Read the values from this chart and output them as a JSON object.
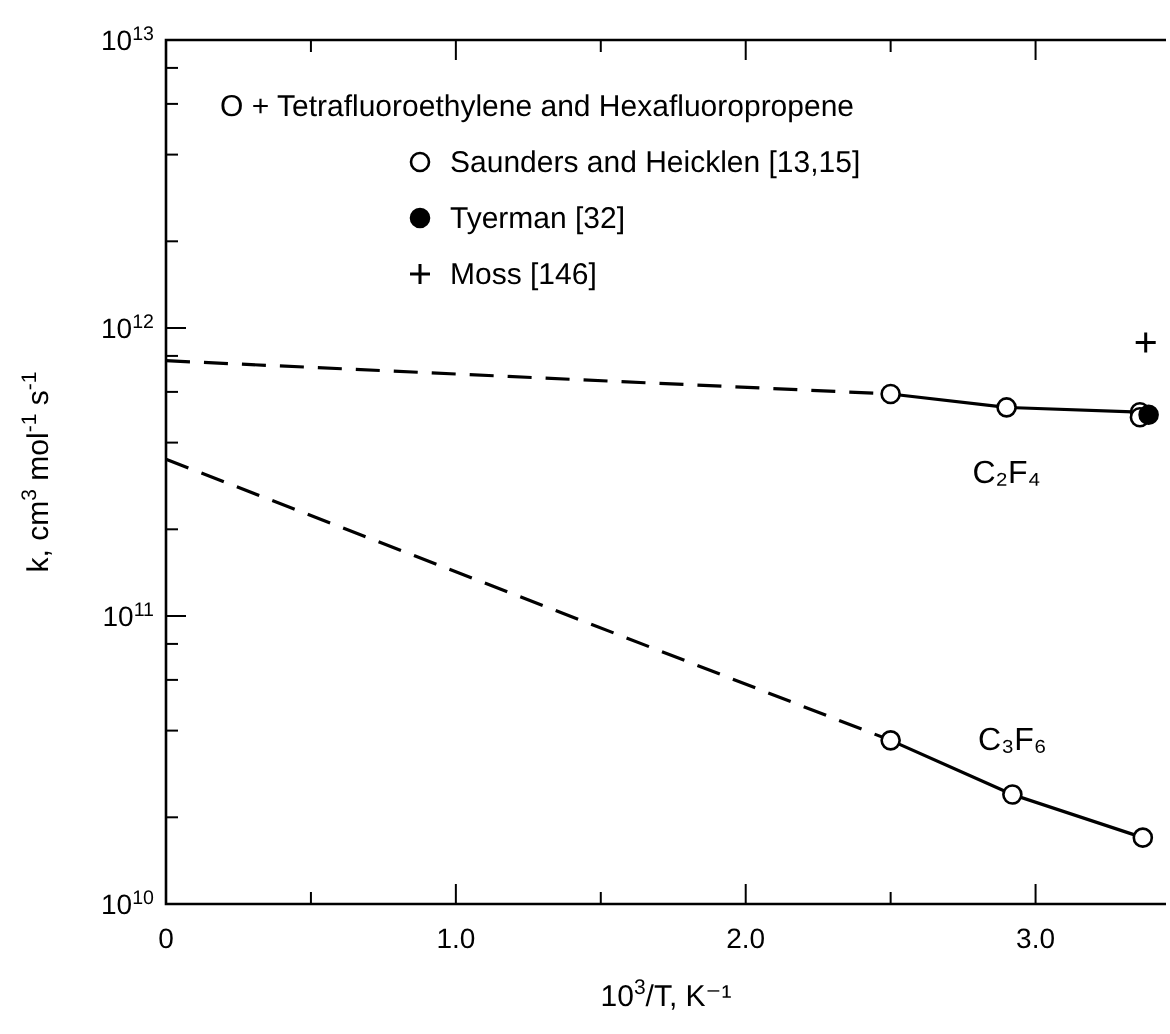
{
  "chart_data": {
    "type": "scatter",
    "xlabel": "10$^{3}$/T, K⁻¹",
    "ylabel": "k, cm$^{3}$ mol$^{-1}$ s$^{-1}$",
    "legend_title": "O + Tetrafluoroethylene and Hexafluoropropene",
    "legend": "top left",
    "log": "y",
    "xlim": [
      0,
      3.45
    ],
    "ylim": [
      10000000000.0,
      10000000000000.0
    ],
    "xticks": [
      {
        "value": 0,
        "label": "0"
      },
      {
        "value": 0.5,
        "label": null
      },
      {
        "value": 1,
        "label": "1.0"
      },
      {
        "value": 1.5,
        "label": null
      },
      {
        "value": 2,
        "label": "2.0"
      },
      {
        "value": 2.5,
        "label": null
      },
      {
        "value": 3,
        "label": "3.0"
      }
    ],
    "yticks": [
      {
        "value": 10000000000.0,
        "label": "10$^{10}$"
      },
      {
        "value": 20000000000.0,
        "label": null
      },
      {
        "value": 40000000000.0,
        "label": null
      },
      {
        "value": 60000000000.0,
        "label": null
      },
      {
        "value": 80000000000.0,
        "label": null
      },
      {
        "value": 100000000000.0,
        "label": "10$^{11}$"
      },
      {
        "value": 200000000000.0,
        "label": null
      },
      {
        "value": 400000000000.0,
        "label": null
      },
      {
        "value": 600000000000.0,
        "label": null
      },
      {
        "value": 800000000000.0,
        "label": null
      },
      {
        "value": 1000000000000.0,
        "label": "10$^{12}$"
      },
      {
        "value": 2000000000000.0,
        "label": null
      },
      {
        "value": 4000000000000.0,
        "label": null
      },
      {
        "value": 6000000000000.0,
        "label": null
      },
      {
        "value": 8000000000000.0,
        "label": null
      },
      {
        "value": 10000000000000.0,
        "label": "10$^{13}$"
      }
    ],
    "series": [
      {
        "type": "line",
        "line_style": "dashed",
        "marker": "none",
        "color": "#000000",
        "x": [
          0,
          2.5
        ],
        "values": [
          770000000000.0,
          590000000000.0
        ]
      },
      {
        "type": "line",
        "line_style": "solid",
        "marker": "none",
        "color": "#000000",
        "x": [
          2.5,
          2.9,
          3.36
        ],
        "values": [
          590000000000.0,
          530000000000.0,
          510000000000.0
        ]
      },
      {
        "type": "line",
        "line_style": "dashed",
        "marker": "none",
        "color": "#000000",
        "x": [
          0,
          2.5
        ],
        "values": [
          350000000000.0,
          37000000000.0
        ]
      },
      {
        "type": "line",
        "line_style": "solid",
        "marker": "none",
        "color": "#000000",
        "x": [
          2.5,
          2.92,
          3.37
        ],
        "values": [
          37000000000.0,
          24000000000.0,
          17000000000.0
        ]
      },
      {
        "name": "Saunders and Heicklen [13,15]",
        "marker": "circle",
        "color": "#ffffff",
        "x": [
          2.5,
          2.9,
          3.36,
          3.36,
          2.5,
          2.92,
          3.37
        ],
        "values": [
          590000000000.0,
          530000000000.0,
          510000000000.0,
          490000000000.0,
          37000000000.0,
          24000000000.0,
          17000000000.0
        ]
      },
      {
        "name": "Tyerman [32]",
        "marker": "circle",
        "color": "#000000",
        "x": [
          3.39
        ],
        "values": [
          500000000000.0
        ]
      },
      {
        "name": "Moss [146]",
        "marker": "cross",
        "color": "#000000",
        "x": [
          3.38
        ],
        "values": [
          890000000000.0
        ]
      }
    ],
    "annotations": [
      "C₂F₄",
      "C₃F₆"
    ]
  }
}
